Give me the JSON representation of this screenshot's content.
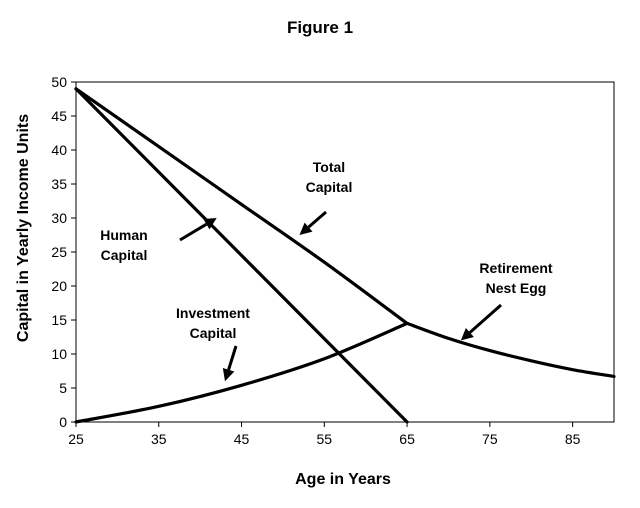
{
  "chart_data": {
    "type": "line",
    "title": "Figure 1",
    "xlabel": "Age in Years",
    "ylabel": "Capital in Yearly Income Units",
    "xlim": [
      25,
      90
    ],
    "ylim": [
      0,
      50
    ],
    "xticks": [
      25,
      35,
      45,
      55,
      65,
      75,
      85
    ],
    "yticks": [
      0,
      5,
      10,
      15,
      20,
      25,
      30,
      35,
      40,
      45,
      50
    ],
    "grid": false,
    "legend": "none",
    "series": [
      {
        "name": "Human Capital",
        "x": [
          25,
          65
        ],
        "y": [
          49,
          0
        ]
      },
      {
        "name": "Total Capital",
        "x": [
          25,
          35,
          45,
          55,
          65
        ],
        "y": [
          49,
          40.5,
          32,
          23.5,
          14.5
        ]
      },
      {
        "name": "Investment Capital",
        "x": [
          25,
          35,
          45,
          55,
          65
        ],
        "y": [
          0,
          2.3,
          5.4,
          9.3,
          14.5
        ]
      },
      {
        "name": "Retirement Nest Egg",
        "x": [
          65,
          70,
          75,
          80,
          85,
          90
        ],
        "y": [
          14.5,
          12.3,
          10.5,
          9.0,
          7.7,
          6.7
        ]
      }
    ],
    "annotations": [
      {
        "lines": [
          "Human",
          "Capital"
        ],
        "arrow_to": [
          42,
          30
        ]
      },
      {
        "lines": [
          "Total",
          "Capital"
        ],
        "arrow_to": [
          52,
          27.5
        ]
      },
      {
        "lines": [
          "Investment",
          "Capital"
        ],
        "arrow_to": [
          43,
          6
        ]
      },
      {
        "lines": [
          "Retirement",
          "Nest Egg"
        ],
        "arrow_to": [
          71.5,
          12
        ]
      }
    ]
  }
}
